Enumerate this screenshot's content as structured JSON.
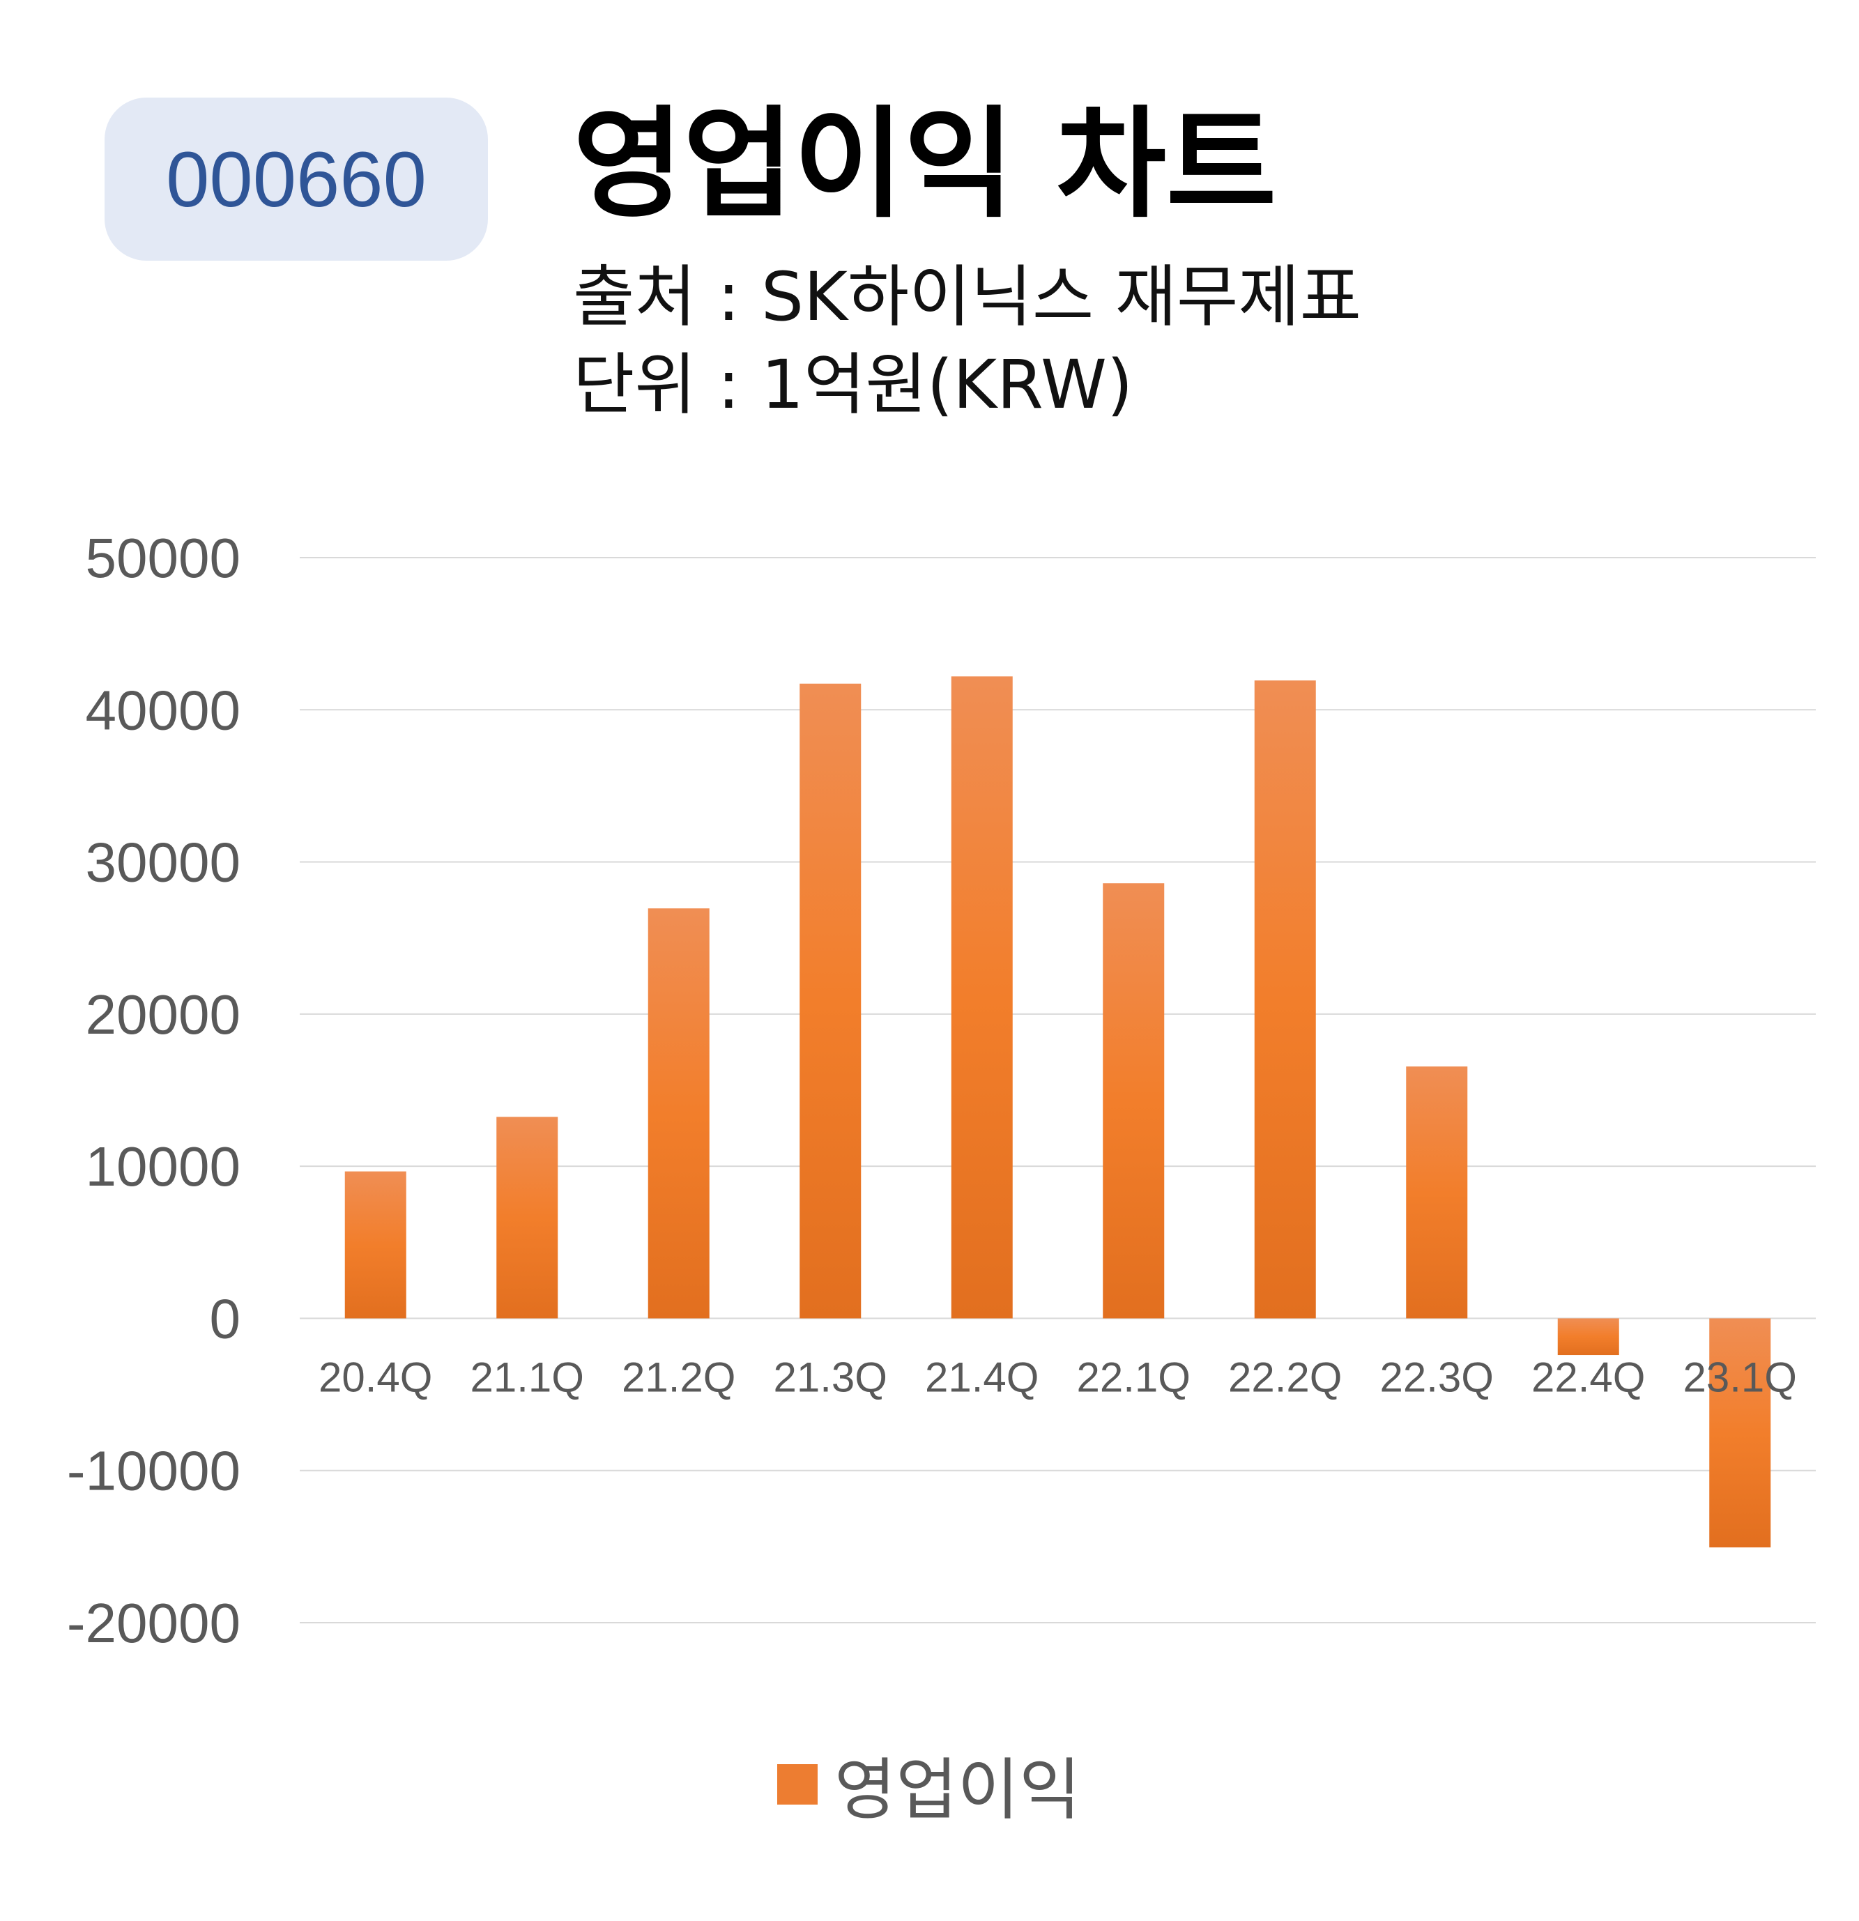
{
  "header": {
    "ticker": "000660",
    "title": "영업이익 차트",
    "source_line": "출처 : SK하이닉스 재무제표",
    "unit_line": "단위 : 1억원(KRW)"
  },
  "colors": {
    "bar": "#ed7d31",
    "badge_bg": "#e3e9f5",
    "badge_text": "#2f5597",
    "grid": "#d9d9d9",
    "axis_text": "#595959"
  },
  "chart_data": {
    "type": "bar",
    "categories": [
      "20.4Q",
      "21.1Q",
      "21.2Q",
      "21.3Q",
      "21.4Q",
      "22.1Q",
      "22.2Q",
      "22.3Q",
      "22.4Q",
      "23.1Q"
    ],
    "series": [
      {
        "name": "영업이익",
        "values": [
          9659,
          13244,
          26946,
          41718,
          42195,
          28596,
          41926,
          16556,
          -2411,
          -15052
        ]
      }
    ],
    "ylim": [
      -20000,
      50000
    ],
    "yticks": [
      50000,
      40000,
      30000,
      20000,
      10000,
      0,
      -10000,
      -20000
    ],
    "grid": true,
    "legend": "bottom-center"
  }
}
